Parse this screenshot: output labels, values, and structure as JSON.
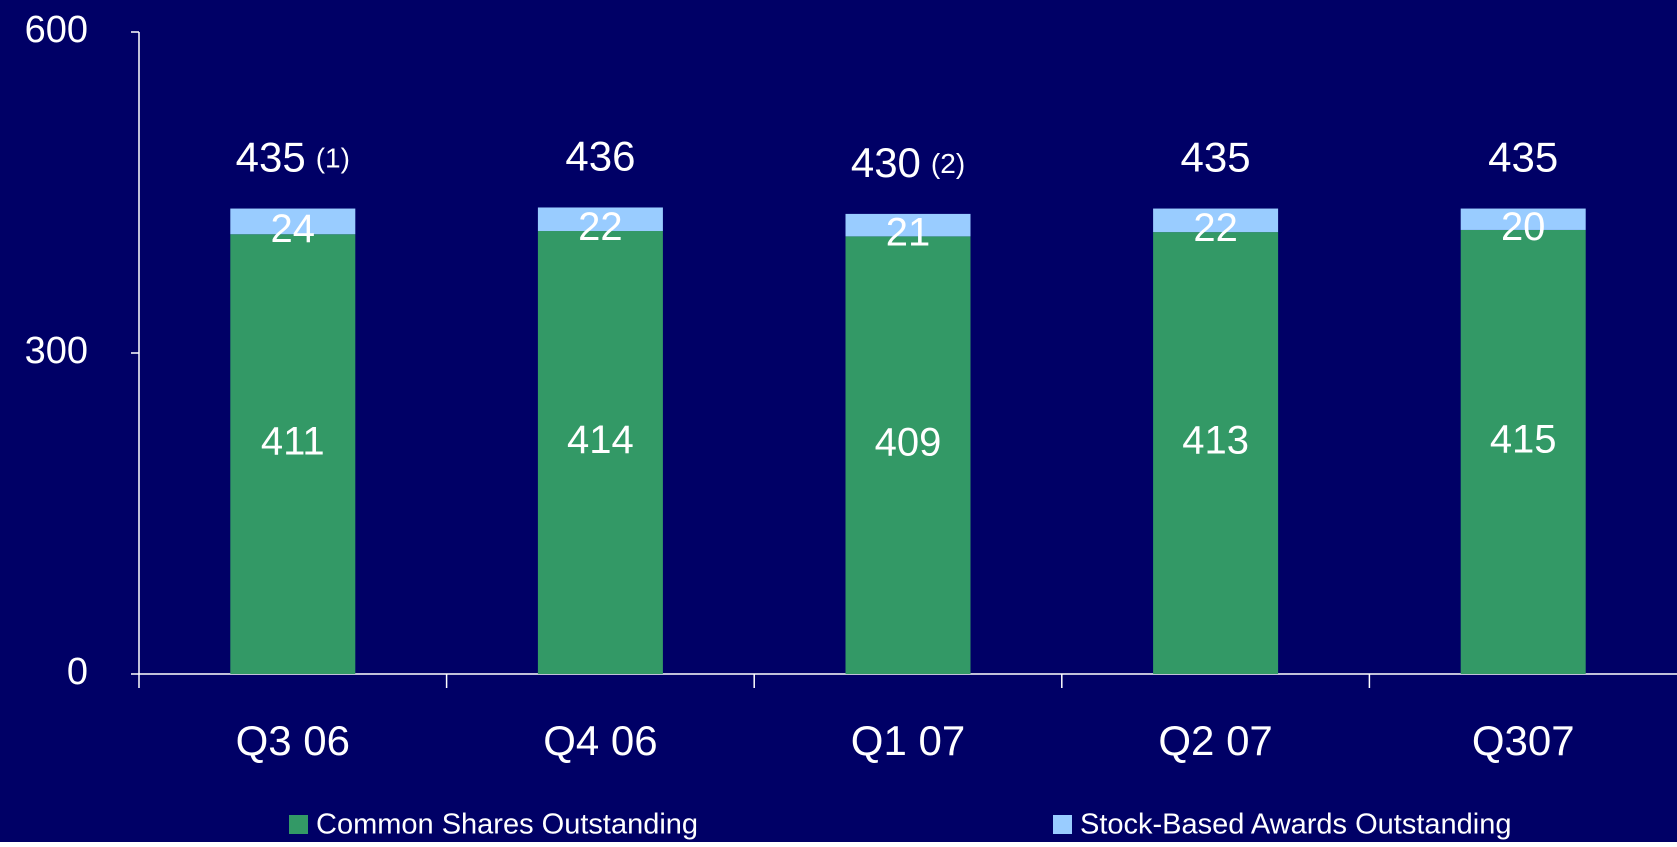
{
  "chart_data": {
    "type": "stacked_bar",
    "categories": [
      "Q3 06",
      "Q4 06",
      "Q1 07",
      "Q2 07",
      "Q307"
    ],
    "series": [
      {
        "name": "Common Shares Outstanding",
        "color": "#339966",
        "values": [
          411,
          414,
          409,
          413,
          415
        ]
      },
      {
        "name": "Stock-Based Awards Outstanding",
        "color": "#99ccff",
        "values": [
          24,
          22,
          21,
          22,
          20
        ]
      }
    ],
    "totals": [
      435,
      436,
      430,
      435,
      435
    ],
    "total_notes": [
      "(1)",
      null,
      "(2)",
      null,
      null
    ],
    "ylim": [
      0,
      600
    ],
    "yticks": [
      0,
      300,
      600
    ],
    "background": "#000066",
    "legend": "bottom"
  }
}
